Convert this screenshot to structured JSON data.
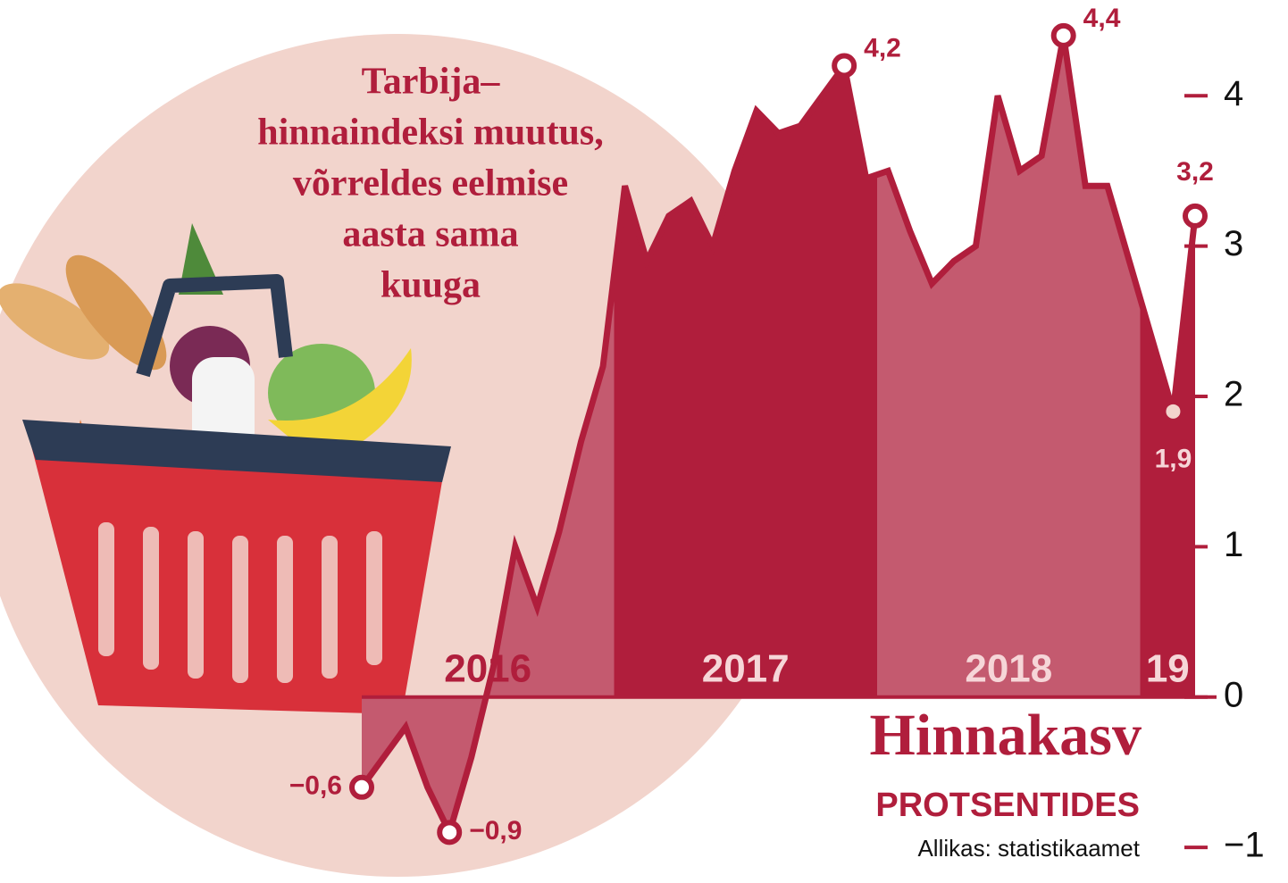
{
  "chart_data": {
    "type": "area",
    "title_lines": [
      "Tarbija–",
      "hinnaindeksi muutus,",
      "võrreldes eelmise",
      "aasta sama",
      "kuuga"
    ],
    "heading": "Hinnakasv",
    "subheading": "PROTSENTIDES",
    "source": "Allikas: statistikaamet",
    "year_labels": [
      "2016",
      "2017",
      "2018",
      "19"
    ],
    "categories": [
      null,
      null,
      null,
      null,
      null,
      null,
      null,
      null,
      null,
      null,
      null,
      null,
      null,
      null,
      null,
      null,
      null,
      null,
      null,
      null,
      null,
      null,
      null,
      null,
      null,
      null,
      null,
      null,
      null,
      null,
      null,
      null,
      null,
      null,
      null,
      null,
      null,
      null,
      null
    ],
    "values": [
      -0.6,
      -0.4,
      -0.2,
      -0.6,
      -0.9,
      -0.4,
      0.2,
      1.0,
      0.6,
      1.1,
      1.7,
      2.2,
      3.4,
      2.9,
      3.2,
      3.3,
      3.0,
      3.5,
      3.9,
      3.75,
      3.8,
      4.0,
      4.2,
      3.45,
      3.5,
      3.1,
      2.75,
      2.9,
      3.0,
      4.0,
      3.5,
      3.6,
      4.4,
      3.4,
      3.4,
      2.9,
      2.4,
      1.9,
      3.2
    ],
    "value_labels": [
      "−0,6",
      null,
      null,
      null,
      "−0,9",
      null,
      null,
      null,
      null,
      null,
      null,
      null,
      null,
      null,
      null,
      null,
      null,
      null,
      null,
      null,
      null,
      null,
      "4,2",
      null,
      null,
      null,
      null,
      null,
      null,
      null,
      null,
      null,
      "4,4",
      null,
      null,
      null,
      null,
      "1,9",
      "3,2"
    ],
    "color": "#b01e3c",
    "band_colors": [
      "#c45a6f",
      "#b01e3c"
    ],
    "ylim": [
      -1.1,
      4.5
    ],
    "yticks": [
      {
        "value": -1,
        "label": "−1"
      },
      0,
      1,
      2,
      3,
      4
    ]
  }
}
